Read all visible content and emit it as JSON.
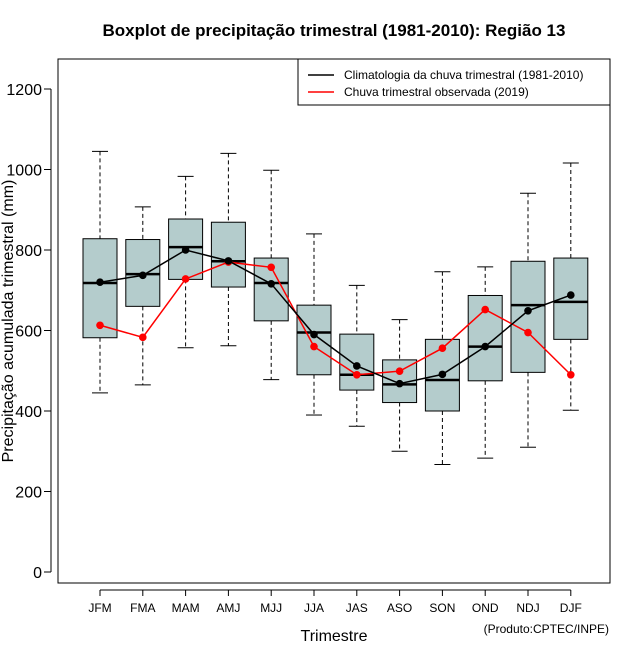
{
  "chart_data": {
    "type": "boxplot",
    "title": "Boxplot de precipitação trimestral (1981-2010): Região 13",
    "xlabel": "Trimestre",
    "ylabel": "Precipitação acumulada trimestral (mm)",
    "ylim": [
      0,
      1250
    ],
    "yticks": [
      0,
      200,
      400,
      600,
      800,
      1000,
      1200
    ],
    "categories": [
      "JFM",
      "FMA",
      "MAM",
      "AMJ",
      "MJJ",
      "JJA",
      "JAS",
      "ASO",
      "SON",
      "OND",
      "NDJ",
      "DJF"
    ],
    "boxes": [
      {
        "min": 445,
        "q1": 582,
        "median": 718,
        "q3": 828,
        "max": 1045
      },
      {
        "min": 465,
        "q1": 660,
        "median": 740,
        "q3": 826,
        "max": 907
      },
      {
        "min": 557,
        "q1": 727,
        "median": 807,
        "q3": 877,
        "max": 983
      },
      {
        "min": 562,
        "q1": 708,
        "median": 772,
        "q3": 869,
        "max": 1040
      },
      {
        "min": 478,
        "q1": 624,
        "median": 718,
        "q3": 780,
        "max": 998
      },
      {
        "min": 390,
        "q1": 490,
        "median": 595,
        "q3": 663,
        "max": 840
      },
      {
        "min": 362,
        "q1": 452,
        "median": 490,
        "q3": 591,
        "max": 712
      },
      {
        "min": 300,
        "q1": 421,
        "median": 466,
        "q3": 527,
        "max": 627
      },
      {
        "min": 267,
        "q1": 400,
        "median": 477,
        "q3": 578,
        "max": 746
      },
      {
        "min": 283,
        "q1": 475,
        "median": 560,
        "q3": 687,
        "max": 758
      },
      {
        "min": 310,
        "q1": 496,
        "median": 663,
        "q3": 772,
        "max": 941
      },
      {
        "min": 402,
        "q1": 578,
        "median": 671,
        "q3": 780,
        "max": 1016
      }
    ],
    "series": [
      {
        "name": "Climatologia da chuva trimestral (1981-2010)",
        "color": "#000000",
        "values": [
          720,
          737,
          800,
          773,
          716,
          590,
          512,
          468,
          491,
          560,
          649,
          688
        ]
      },
      {
        "name": "Chuva trimestral observada (2019)",
        "color": "#ff0000",
        "values": [
          613,
          583,
          728,
          770,
          757,
          560,
          490,
          499,
          556,
          652,
          595,
          490
        ]
      }
    ],
    "box_fill": "#b4cccc",
    "legend_position": "top-right"
  },
  "credit": "(Produto:CPTEC/INPE)"
}
